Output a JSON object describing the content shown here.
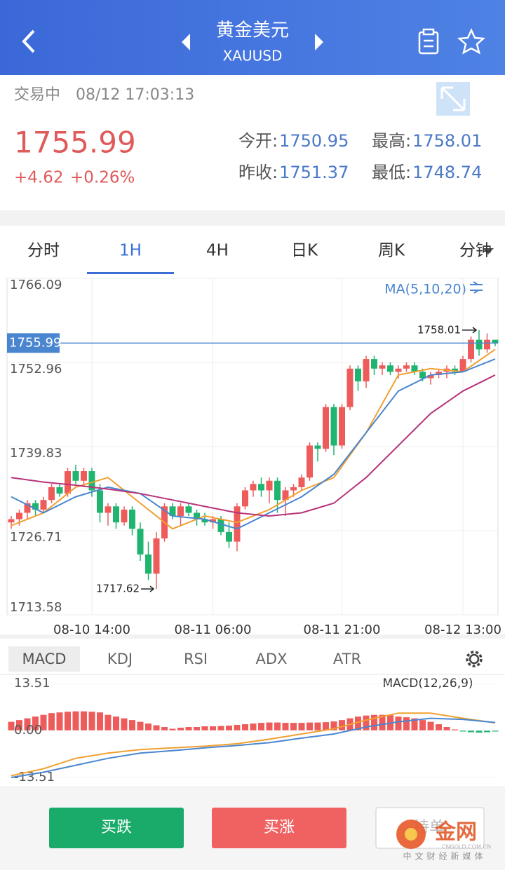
{
  "header": {
    "title": "黄金美元",
    "subtitle": "XAUUSD"
  },
  "status": {
    "state": "交易中",
    "time": "08/12 17:03:13"
  },
  "quote": {
    "price": "1755.99",
    "change": "+4.62",
    "change_pct": "+0.26%",
    "stats": [
      {
        "label": "今开:",
        "value": "1750.95"
      },
      {
        "label": "最高:",
        "value": "1758.01"
      },
      {
        "label": "昨收:",
        "value": "1751.37"
      },
      {
        "label": "最低:",
        "value": "1748.74"
      }
    ]
  },
  "tabs": {
    "items": [
      "分时",
      "1H",
      "4H",
      "日K",
      "周K",
      "分钟"
    ],
    "active": 1
  },
  "kline": {
    "type": "candlestick",
    "ylim": [
      1713.58,
      1766.09
    ],
    "yticks": [
      1766.09,
      1752.96,
      1739.83,
      1726.71,
      1713.58
    ],
    "xticks": [
      {
        "value": 10,
        "label": "08-10 14:00"
      },
      {
        "value": 25,
        "label": "08-11 06:00"
      },
      {
        "value": 41,
        "label": "08-11 21:00"
      },
      {
        "value": 56,
        "label": "08-12 13:00"
      }
    ],
    "current": 1755.99,
    "up_color": "#ee5b5b",
    "down_color": "#1fb46f",
    "candles": [
      [
        1728,
        1729,
        1727,
        1728.5
      ],
      [
        1728.5,
        1730,
        1727.5,
        1729.5
      ],
      [
        1729.5,
        1731.5,
        1728.5,
        1731
      ],
      [
        1731,
        1731.5,
        1729,
        1730
      ],
      [
        1730,
        1732,
        1729.5,
        1731.5
      ],
      [
        1731.5,
        1734,
        1731,
        1733.5
      ],
      [
        1733.5,
        1734,
        1732,
        1732.5
      ],
      [
        1732.5,
        1736.5,
        1732,
        1736
      ],
      [
        1736,
        1737,
        1734,
        1734.5
      ],
      [
        1734.5,
        1736.5,
        1733.5,
        1736
      ],
      [
        1736,
        1736.5,
        1732,
        1733
      ],
      [
        1733,
        1734,
        1728,
        1729.5
      ],
      [
        1729.5,
        1731,
        1727.5,
        1730.5
      ],
      [
        1730.5,
        1731,
        1727,
        1728
      ],
      [
        1728,
        1730.5,
        1727.5,
        1730
      ],
      [
        1730,
        1730.5,
        1726,
        1727
      ],
      [
        1727,
        1728,
        1722,
        1723
      ],
      [
        1723,
        1725,
        1719,
        1720
      ],
      [
        1720,
        1726.5,
        1717.62,
        1725.5
      ],
      [
        1725.5,
        1731,
        1725,
        1730.5
      ],
      [
        1730.5,
        1731,
        1728.5,
        1729
      ],
      [
        1729,
        1731,
        1727.5,
        1730.5
      ],
      [
        1730.5,
        1731,
        1729,
        1729.5
      ],
      [
        1729.5,
        1730,
        1727.5,
        1728.5
      ],
      [
        1728.5,
        1729.5,
        1727.5,
        1728
      ],
      [
        1728,
        1729,
        1727,
        1728.5
      ],
      [
        1728.5,
        1729,
        1726,
        1726.5
      ],
      [
        1726.5,
        1728,
        1724,
        1725
      ],
      [
        1725,
        1731,
        1723.5,
        1730.5
      ],
      [
        1730.5,
        1733.5,
        1730,
        1733
      ],
      [
        1733,
        1734.5,
        1732,
        1734
      ],
      [
        1734,
        1735,
        1732,
        1733
      ],
      [
        1733,
        1735,
        1731,
        1734.5
      ],
      [
        1734.5,
        1735,
        1729.5,
        1731.5
      ],
      [
        1731.5,
        1733.5,
        1729,
        1733
      ],
      [
        1733,
        1734,
        1732,
        1733.5
      ],
      [
        1733.5,
        1735.5,
        1733,
        1735
      ],
      [
        1735,
        1740.5,
        1734.5,
        1740
      ],
      [
        1740,
        1740.5,
        1737.5,
        1739.5
      ],
      [
        1739.5,
        1746.5,
        1739,
        1746
      ],
      [
        1746,
        1746.5,
        1738.5,
        1740
      ],
      [
        1740,
        1746.5,
        1739.5,
        1746
      ],
      [
        1746,
        1752.5,
        1745.5,
        1752
      ],
      [
        1752,
        1752.5,
        1748.5,
        1750
      ],
      [
        1750,
        1754,
        1749,
        1753.5
      ],
      [
        1753.5,
        1754,
        1751,
        1752
      ],
      [
        1752,
        1753,
        1751,
        1752.5
      ],
      [
        1752.5,
        1753,
        1751,
        1751.5
      ],
      [
        1751.5,
        1752.5,
        1750.5,
        1752
      ],
      [
        1752,
        1753,
        1751.5,
        1752.5
      ],
      [
        1752.5,
        1753,
        1751,
        1751.5
      ],
      [
        1751.5,
        1752,
        1750,
        1750.5
      ],
      [
        1750.5,
        1751.5,
        1749.5,
        1751
      ],
      [
        1751,
        1752,
        1750.5,
        1751.5
      ],
      [
        1751.5,
        1752.5,
        1750.5,
        1752
      ],
      [
        1752,
        1752.5,
        1751,
        1751.5
      ],
      [
        1751.5,
        1754,
        1751.5,
        1753.5
      ],
      [
        1753.5,
        1757,
        1753,
        1756.5
      ],
      [
        1756.5,
        1758.01,
        1754,
        1755
      ],
      [
        1755,
        1757.5,
        1754.5,
        1756.5
      ],
      [
        1756.5,
        1756.5,
        1755.5,
        1755.99
      ]
    ],
    "high_index": 58,
    "low_index": 18,
    "ma": {
      "label": "MA(5,10,20)",
      "x": [
        0,
        4,
        8,
        12,
        16,
        20,
        24,
        28,
        32,
        36,
        40,
        44,
        48,
        52,
        56,
        60
      ],
      "series": [
        {
          "color": "#f0a030",
          "values": [
            1727.5,
            1729.5,
            1733.5,
            1735,
            1731,
            1727,
            1729,
            1728,
            1730,
            1733,
            1735,
            1742,
            1751,
            1752,
            1751.5,
            1755
          ]
        },
        {
          "color": "#4a86d0",
          "values": [
            1732,
            1729.5,
            1732,
            1733.5,
            1732.5,
            1729,
            1728.5,
            1727,
            1729.5,
            1732,
            1735.5,
            1742,
            1748.5,
            1751,
            1751.5,
            1753.5
          ]
        },
        {
          "color": "#b8337a",
          "values": [
            1735,
            1734.3,
            1733.8,
            1733.2,
            1732.5,
            1731.5,
            1730.5,
            1729.5,
            1729,
            1729.5,
            1731,
            1735,
            1740,
            1745,
            1748.5,
            1751
          ]
        }
      ]
    }
  },
  "indicators": {
    "items": [
      "MACD",
      "KDJ",
      "RSI",
      "ADX",
      "ATR"
    ],
    "active": 0
  },
  "macd": {
    "label": "MACD(12,26,9)",
    "ylim": [
      -13.51,
      13.51
    ],
    "yticks": [
      13.51,
      {
        "value": 0,
        "label": "0.00"
      },
      -13.51
    ],
    "histogram": [
      2.5,
      3,
      3.5,
      4,
      4.5,
      5,
      5.2,
      5.4,
      5.5,
      5.5,
      5.4,
      5.2,
      4.5,
      4,
      3.5,
      3,
      2.5,
      2,
      1.5,
      1,
      0.5,
      0.8,
      1,
      1,
      1.2,
      1.2,
      1.3,
      1.4,
      1.6,
      1.8,
      2,
      2.2,
      2.3,
      2.3,
      2.2,
      2.2,
      2.2,
      2.3,
      2.3,
      2.4,
      2.6,
      3,
      3.5,
      4,
      4.3,
      4.5,
      4.5,
      4.4,
      4,
      3.8,
      3.5,
      3,
      2.5,
      1.8,
      1,
      0.3,
      -0.3,
      -0.5,
      -0.6,
      -0.5,
      -0.3
    ],
    "x": [
      0,
      4,
      8,
      12,
      16,
      20,
      24,
      28,
      32,
      36,
      40,
      44,
      48,
      52,
      56,
      60
    ],
    "series": [
      {
        "color": "#f0a030",
        "values": [
          -13,
          -11,
          -8,
          -6.5,
          -5.5,
          -5,
          -4.5,
          -3.8,
          -2.5,
          -1,
          0.5,
          3,
          5,
          5,
          3.5,
          2.2
        ]
      },
      {
        "color": "#4a86d0",
        "values": [
          -13.5,
          -12,
          -10,
          -8,
          -6.5,
          -5.8,
          -5,
          -4.3,
          -3.5,
          -2.2,
          -1,
          1,
          2.5,
          3.5,
          3.2,
          2.3
        ]
      }
    ]
  },
  "buttons": {
    "sell": "买跌",
    "buy": "买涨",
    "hold": "持单"
  },
  "watermark": {
    "name": "金网",
    "domain": "CNGOLD.COM.CN",
    "slogan": "中文财经新媒体"
  }
}
